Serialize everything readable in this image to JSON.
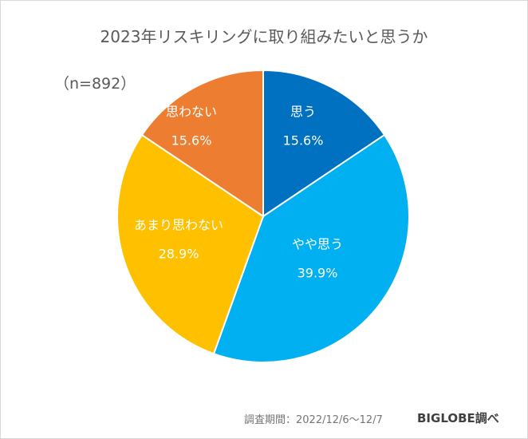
{
  "chart_data": {
    "type": "pie",
    "title": "2023年リスキリングに取り組みたいと思うか",
    "sample_size": "（n=892）",
    "slices": [
      {
        "label": "思う",
        "value": 15.6,
        "value_label": "15.6%",
        "color": "#0070C0"
      },
      {
        "label": "やや思う",
        "value": 39.9,
        "value_label": "39.9%",
        "color": "#00B0F0"
      },
      {
        "label": "あまり思わない",
        "value": 28.9,
        "value_label": "28.9%",
        "color": "#FFC000"
      },
      {
        "label": "思わない",
        "value": 15.6,
        "value_label": "15.6%",
        "color": "#ED7D31"
      }
    ],
    "start": "top",
    "direction": "clockwise"
  },
  "footer": {
    "period": "調査期間：2022/12/6～12/7",
    "source": "BIGLOBE調べ"
  }
}
